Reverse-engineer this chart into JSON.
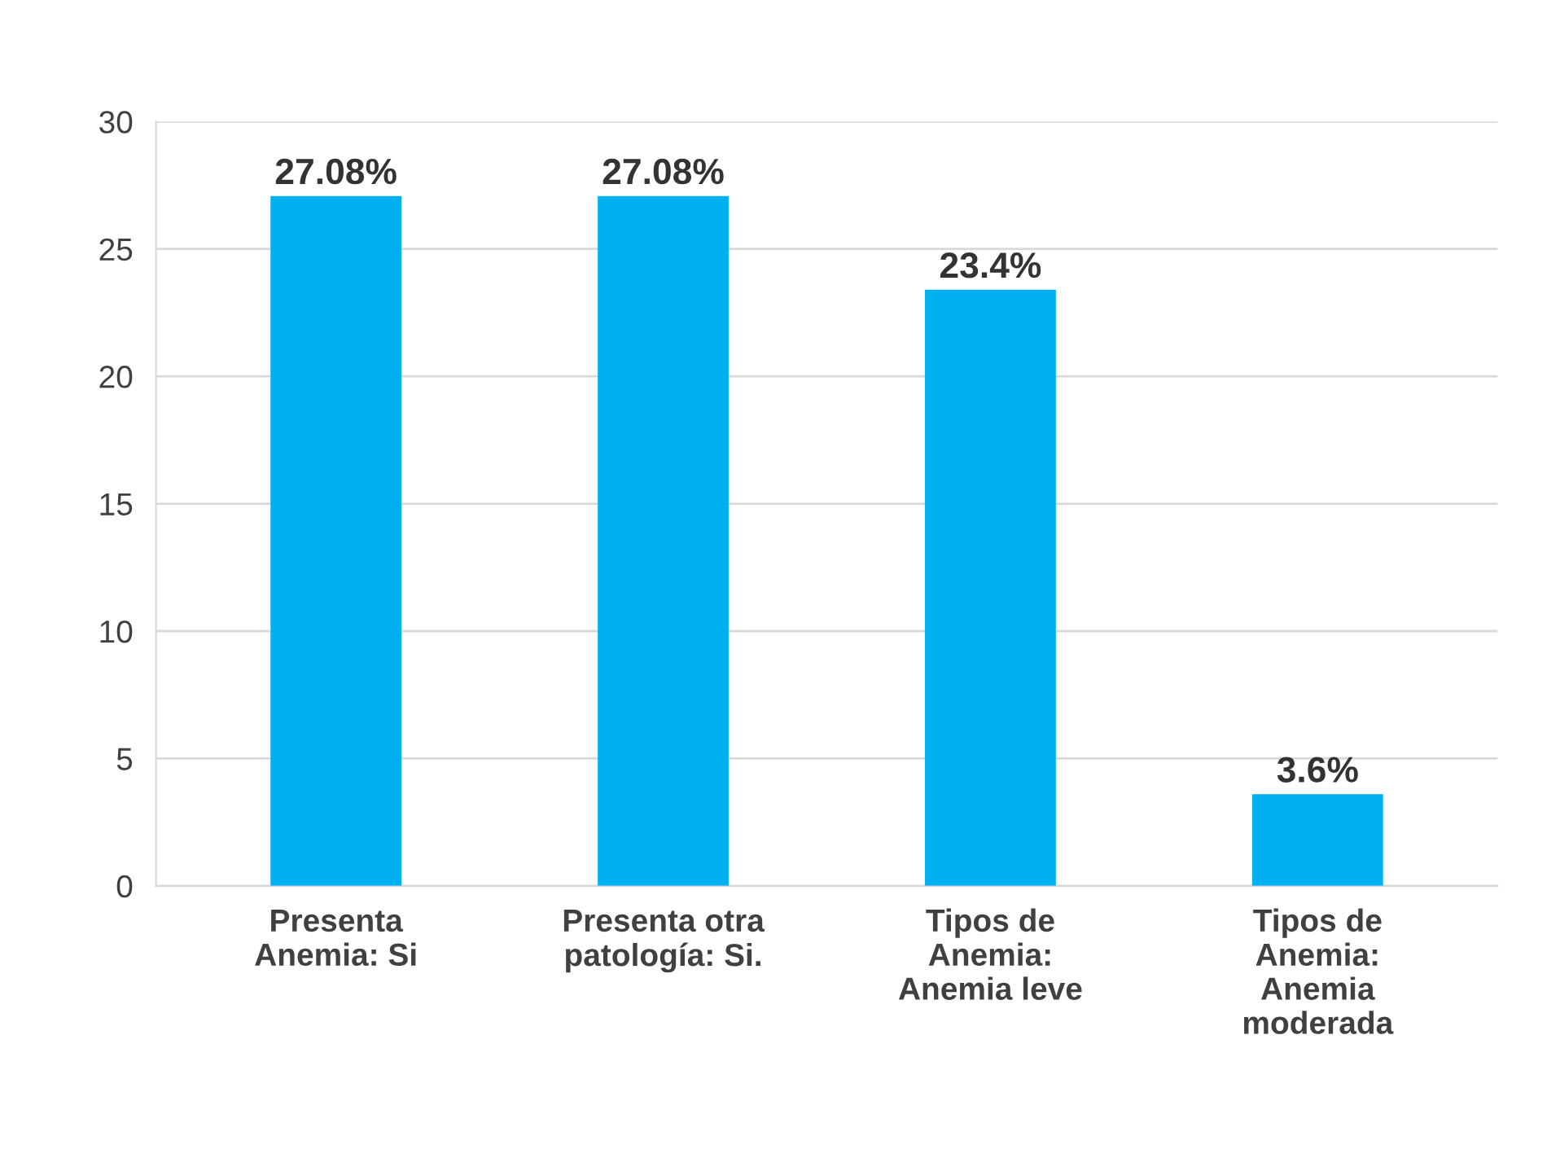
{
  "chart_data": {
    "type": "bar",
    "categories": [
      "Presenta\nAnemia: Si",
      "Presenta otra\npatología: Si.",
      "Tipos de\nAnemia:\nAnemia leve",
      "Tipos de\nAnemia:\nAnemia\nmoderada"
    ],
    "values": [
      27.08,
      27.08,
      23.4,
      3.6
    ],
    "value_labels": [
      "27.08%",
      "27.08%",
      "23.4%",
      "3.6%"
    ],
    "color": "#00b0f0",
    "ylim": [
      0,
      30
    ],
    "yticks": [
      0,
      5,
      10,
      15,
      20,
      25,
      30
    ],
    "grid": "y"
  }
}
